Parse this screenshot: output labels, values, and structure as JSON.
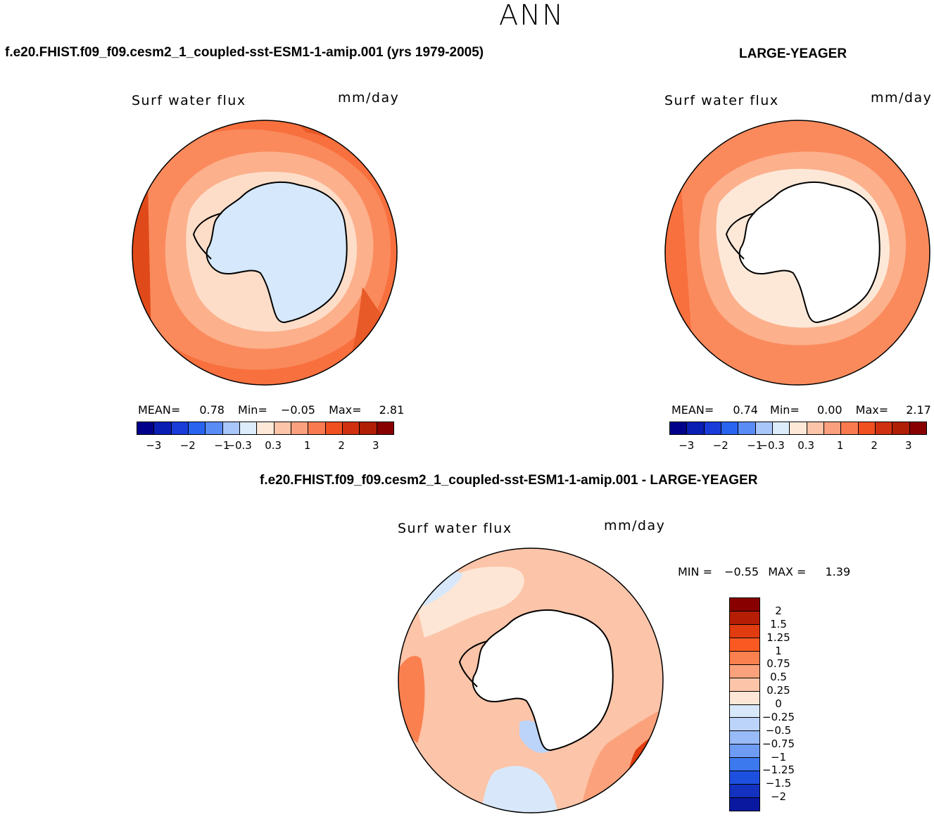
{
  "season": "ANN",
  "panels": {
    "model": {
      "title": "f.e20.FHIST.f09_f09.cesm2_1_coupled-sst-ESM1-1-amip.001 (yrs 1979-2005)",
      "field": "Surf water flux",
      "units": "mm/day",
      "stats": {
        "mean_label": "MEAN=",
        "mean": "0.78",
        "min_label": "Min=",
        "min": "−0.05",
        "max_label": "Max=",
        "max": "2.81"
      }
    },
    "obs": {
      "title": "LARGE-YEAGER",
      "field": "Surf water flux",
      "units": "mm/day",
      "stats": {
        "mean_label": "MEAN=",
        "mean": "0.74",
        "min_label": "Min=",
        "min": "0.00",
        "max_label": "Max=",
        "max": "2.17"
      }
    },
    "diff": {
      "title": "f.e20.FHIST.f09_f09.cesm2_1_coupled-sst-ESM1-1-amip.001 - LARGE-YEAGER",
      "field": "Surf water flux",
      "units": "mm/day",
      "stats": {
        "min_label": "MIN =",
        "min": "−0.55",
        "max_label": "MAX =",
        "max": "1.39"
      }
    }
  },
  "colorbar": {
    "colors": [
      "#00008b",
      "#0a1eb4",
      "#1a3cd8",
      "#2864f0",
      "#5a8cf5",
      "#a9c6fa",
      "#dcecfb",
      "#fde8d8",
      "#fcc4a8",
      "#fba07e",
      "#fa7a50",
      "#f05020",
      "#d03010",
      "#b01e05",
      "#880000"
    ],
    "ticks": [
      "−3",
      "−2",
      "−1",
      "−0.3",
      "0.3",
      "1",
      "2",
      "3"
    ]
  },
  "diff_colorbar": {
    "colors": [
      "#880000",
      "#b51e05",
      "#e03c10",
      "#fa5a22",
      "#fb8050",
      "#fba27c",
      "#fcc4a8",
      "#fde6d6",
      "#d8e8fa",
      "#bcd4fa",
      "#98baf7",
      "#6e9cf4",
      "#3c78ee",
      "#1e50e0",
      "#1432c0",
      "#0a18a0"
    ],
    "ticks": [
      "2",
      "1.5",
      "1.25",
      "1",
      "0.75",
      "0.5",
      "0.25",
      "0",
      "−0.25",
      "−0.5",
      "−0.75",
      "−1",
      "−1.25",
      "−1.5",
      "−2"
    ]
  },
  "chart_data": [
    {
      "type": "heatmap",
      "title": "Surf water flux",
      "units": "mm/day",
      "projection": "south-polar-stereographic",
      "mean": 0.78,
      "min": -0.05,
      "max": 2.81,
      "levels": [
        -3,
        -2,
        -1,
        -0.3,
        0.3,
        1,
        2,
        3
      ]
    },
    {
      "type": "heatmap",
      "title": "Surf water flux",
      "units": "mm/day",
      "projection": "south-polar-stereographic",
      "mean": 0.74,
      "min": 0.0,
      "max": 2.17,
      "levels": [
        -3,
        -2,
        -1,
        -0.3,
        0.3,
        1,
        2,
        3
      ]
    },
    {
      "type": "heatmap",
      "title": "Surf water flux",
      "units": "mm/day",
      "projection": "south-polar-stereographic",
      "min": -0.55,
      "max": 1.39,
      "levels": [
        -2,
        -1.5,
        -1.25,
        -1,
        -0.75,
        -0.5,
        -0.25,
        0,
        0.25,
        0.5,
        0.75,
        1,
        1.25,
        1.5,
        2
      ]
    }
  ]
}
